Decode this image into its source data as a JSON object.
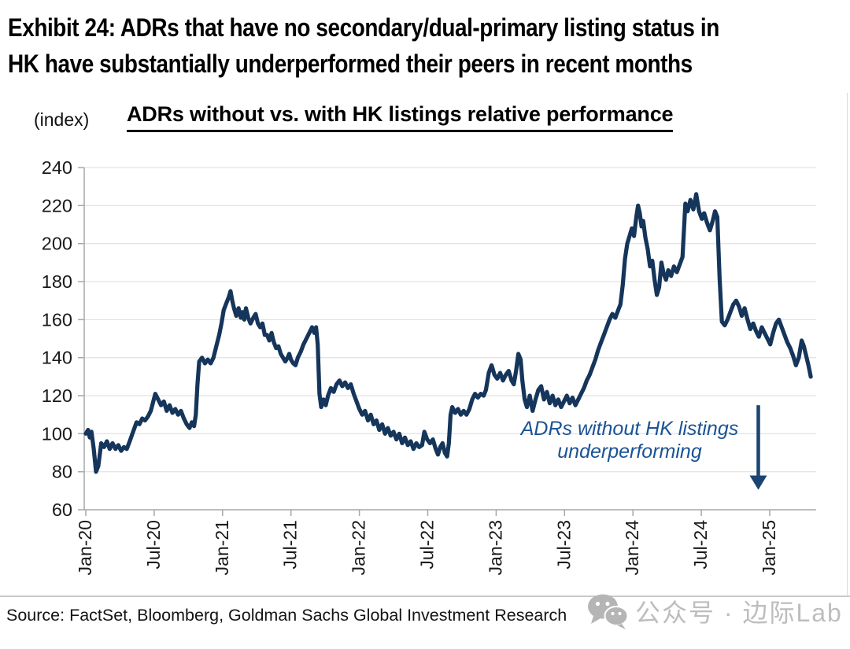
{
  "exhibit": {
    "title_line1": "Exhibit 24: ADRs that have no secondary/dual-primary listing status in",
    "title_line2": "HK have substantially underperformed their peers in recent months"
  },
  "chart": {
    "units_label": "(index)",
    "title": "ADRs without vs. with HK listings relative performance",
    "annotation": {
      "line1": "ADRs without HK listings",
      "line2": "underperforming"
    },
    "source": "Source: FactSet, Bloomberg, Goldman Sachs Global Investment Research"
  },
  "watermark": {
    "icon": "wechat-icon",
    "text": "公众号 · 边际Lab"
  },
  "chart_data": {
    "type": "line",
    "title": "ADRs without vs. with HK listings relative performance",
    "ylabel": "(index)",
    "ylim": [
      60,
      240
    ],
    "ytick_step": 20,
    "yticks": [
      60,
      80,
      100,
      120,
      140,
      160,
      180,
      200,
      220,
      240
    ],
    "x_unit": "months since Jan-2020",
    "xtick_labels": [
      "Jan-20",
      "Jul-20",
      "Jan-21",
      "Jul-21",
      "Jan-22",
      "Jul-22",
      "Jan-23",
      "Jul-23",
      "Jan-24",
      "Jul-24",
      "Jan-25"
    ],
    "xtick_positions": [
      0,
      6,
      12,
      18,
      24,
      30,
      36,
      42,
      48,
      54,
      60
    ],
    "grid": "horizontal",
    "line_color": "#15355b",
    "grid_color": "#dcdcdc",
    "axis_color": "#a8a8a8",
    "tick_label_color": "#1a1a1a",
    "annotation": {
      "text": "ADRs without HK listings underperforming",
      "color": "#1b5394",
      "arrow": {
        "direction": "down",
        "t": 59,
        "value_from": 115,
        "value_base": 78,
        "value_tip": 70.5,
        "color": "#1b4470"
      }
    },
    "series": [
      {
        "name": "ADRs without vs. with HK listings relative performance",
        "points": [
          [
            0,
            100
          ],
          [
            0.2,
            102
          ],
          [
            0.35,
            98
          ],
          [
            0.5,
            101
          ],
          [
            0.7,
            92
          ],
          [
            0.9,
            80
          ],
          [
            1.1,
            83
          ],
          [
            1.35,
            95
          ],
          [
            1.6,
            93
          ],
          [
            1.85,
            96
          ],
          [
            2.1,
            92
          ],
          [
            2.35,
            95
          ],
          [
            2.6,
            92
          ],
          [
            2.85,
            94
          ],
          [
            3.1,
            91
          ],
          [
            3.35,
            93
          ],
          [
            3.6,
            92
          ],
          [
            3.85,
            96
          ],
          [
            4.15,
            101
          ],
          [
            4.45,
            106
          ],
          [
            4.7,
            105
          ],
          [
            4.95,
            108
          ],
          [
            5.2,
            107
          ],
          [
            5.45,
            109
          ],
          [
            5.7,
            112
          ],
          [
            6.1,
            121
          ],
          [
            6.35,
            118
          ],
          [
            6.6,
            115
          ],
          [
            6.85,
            117
          ],
          [
            7.1,
            112
          ],
          [
            7.35,
            115
          ],
          [
            7.6,
            111
          ],
          [
            7.85,
            113
          ],
          [
            8.1,
            110
          ],
          [
            8.35,
            112
          ],
          [
            8.6,
            108
          ],
          [
            8.85,
            105
          ],
          [
            9.1,
            103
          ],
          [
            9.3,
            106
          ],
          [
            9.5,
            104
          ],
          [
            9.65,
            110
          ],
          [
            9.8,
            126
          ],
          [
            9.95,
            138
          ],
          [
            10.2,
            140
          ],
          [
            10.45,
            137
          ],
          [
            10.7,
            139
          ],
          [
            10.95,
            137
          ],
          [
            11.2,
            140
          ],
          [
            11.45,
            146
          ],
          [
            11.7,
            152
          ],
          [
            11.9,
            158
          ],
          [
            12.1,
            165
          ],
          [
            12.35,
            169
          ],
          [
            12.55,
            172
          ],
          [
            12.7,
            175
          ],
          [
            12.85,
            170
          ],
          [
            13.0,
            166
          ],
          [
            13.2,
            162
          ],
          [
            13.4,
            166
          ],
          [
            13.6,
            161
          ],
          [
            13.75,
            164
          ],
          [
            13.9,
            160
          ],
          [
            14.05,
            166
          ],
          [
            14.25,
            161
          ],
          [
            14.45,
            158
          ],
          [
            14.7,
            161
          ],
          [
            14.9,
            163
          ],
          [
            15.1,
            158
          ],
          [
            15.3,
            156
          ],
          [
            15.5,
            158
          ],
          [
            15.7,
            152
          ],
          [
            15.9,
            152
          ],
          [
            16.1,
            149
          ],
          [
            16.3,
            153
          ],
          [
            16.5,
            148
          ],
          [
            16.7,
            145
          ],
          [
            16.9,
            146
          ],
          [
            17.1,
            142
          ],
          [
            17.3,
            140
          ],
          [
            17.5,
            138
          ],
          [
            17.7,
            140
          ],
          [
            17.85,
            142
          ],
          [
            18.0,
            139
          ],
          [
            18.2,
            137
          ],
          [
            18.4,
            136
          ],
          [
            18.6,
            140
          ],
          [
            18.85,
            143
          ],
          [
            19.1,
            147
          ],
          [
            19.35,
            150
          ],
          [
            19.6,
            153
          ],
          [
            19.85,
            156
          ],
          [
            20.05,
            153
          ],
          [
            20.2,
            156
          ],
          [
            20.35,
            147
          ],
          [
            20.5,
            121
          ],
          [
            20.65,
            114
          ],
          [
            20.85,
            118
          ],
          [
            21.05,
            115
          ],
          [
            21.25,
            120
          ],
          [
            21.5,
            124
          ],
          [
            21.75,
            122
          ],
          [
            22.0,
            126
          ],
          [
            22.25,
            128
          ],
          [
            22.5,
            125
          ],
          [
            22.75,
            127
          ],
          [
            23.0,
            124
          ],
          [
            23.25,
            126
          ],
          [
            23.5,
            121
          ],
          [
            23.75,
            117
          ],
          [
            24.0,
            113
          ],
          [
            24.25,
            110
          ],
          [
            24.5,
            112
          ],
          [
            24.75,
            107
          ],
          [
            25.0,
            110
          ],
          [
            25.25,
            105
          ],
          [
            25.5,
            107
          ],
          [
            25.75,
            102
          ],
          [
            26.0,
            105
          ],
          [
            26.25,
            100
          ],
          [
            26.5,
            103
          ],
          [
            26.75,
            99
          ],
          [
            27.0,
            101
          ],
          [
            27.25,
            97
          ],
          [
            27.5,
            100
          ],
          [
            27.75,
            95
          ],
          [
            28.0,
            98
          ],
          [
            28.25,
            94
          ],
          [
            28.5,
            96
          ],
          [
            28.75,
            92
          ],
          [
            29.0,
            95
          ],
          [
            29.25,
            93
          ],
          [
            29.5,
            94
          ],
          [
            29.7,
            101
          ],
          [
            29.95,
            97
          ],
          [
            30.2,
            95
          ],
          [
            30.45,
            97
          ],
          [
            30.7,
            92
          ],
          [
            30.9,
            89
          ],
          [
            31.1,
            93
          ],
          [
            31.3,
            95
          ],
          [
            31.5,
            90
          ],
          [
            31.7,
            88
          ],
          [
            31.85,
            95
          ],
          [
            32.0,
            110
          ],
          [
            32.15,
            114
          ],
          [
            32.4,
            111
          ],
          [
            32.65,
            113
          ],
          [
            32.9,
            110
          ],
          [
            33.15,
            112
          ],
          [
            33.4,
            110
          ],
          [
            33.65,
            113
          ],
          [
            33.9,
            118
          ],
          [
            34.15,
            121
          ],
          [
            34.4,
            119
          ],
          [
            34.65,
            121
          ],
          [
            34.9,
            120
          ],
          [
            35.1,
            123
          ],
          [
            35.35,
            132
          ],
          [
            35.6,
            136
          ],
          [
            35.85,
            131
          ],
          [
            36.1,
            129
          ],
          [
            36.35,
            132
          ],
          [
            36.6,
            128
          ],
          [
            36.85,
            131
          ],
          [
            37.1,
            133
          ],
          [
            37.35,
            128
          ],
          [
            37.55,
            126
          ],
          [
            37.75,
            133
          ],
          [
            37.95,
            142
          ],
          [
            38.15,
            139
          ],
          [
            38.3,
            128
          ],
          [
            38.5,
            118
          ],
          [
            38.7,
            114
          ],
          [
            38.95,
            120
          ],
          [
            39.2,
            112
          ],
          [
            39.45,
            118
          ],
          [
            39.7,
            123
          ],
          [
            39.95,
            125
          ],
          [
            40.2,
            118
          ],
          [
            40.45,
            122
          ],
          [
            40.7,
            116
          ],
          [
            40.95,
            120
          ],
          [
            41.2,
            115
          ],
          [
            41.45,
            118
          ],
          [
            41.7,
            114
          ],
          [
            41.95,
            117
          ],
          [
            42.2,
            120
          ],
          [
            42.45,
            116
          ],
          [
            42.7,
            119
          ],
          [
            42.95,
            115
          ],
          [
            43.2,
            118
          ],
          [
            43.45,
            121
          ],
          [
            43.7,
            124
          ],
          [
            43.95,
            128
          ],
          [
            44.2,
            131
          ],
          [
            44.45,
            135
          ],
          [
            44.7,
            139
          ],
          [
            44.95,
            144
          ],
          [
            45.2,
            148
          ],
          [
            45.45,
            152
          ],
          [
            45.7,
            156
          ],
          [
            45.95,
            160
          ],
          [
            46.2,
            163
          ],
          [
            46.45,
            161
          ],
          [
            46.7,
            165
          ],
          [
            46.9,
            168
          ],
          [
            47.1,
            178
          ],
          [
            47.3,
            192
          ],
          [
            47.5,
            200
          ],
          [
            47.7,
            204
          ],
          [
            47.9,
            208
          ],
          [
            48.1,
            204
          ],
          [
            48.3,
            214
          ],
          [
            48.45,
            220
          ],
          [
            48.6,
            216
          ],
          [
            48.75,
            209
          ],
          [
            48.9,
            212
          ],
          [
            49.1,
            203
          ],
          [
            49.3,
            197
          ],
          [
            49.5,
            188
          ],
          [
            49.7,
            191
          ],
          [
            49.9,
            181
          ],
          [
            50.1,
            173
          ],
          [
            50.3,
            177
          ],
          [
            50.5,
            190
          ],
          [
            50.7,
            184
          ],
          [
            50.9,
            181
          ],
          [
            51.1,
            186
          ],
          [
            51.35,
            183
          ],
          [
            51.6,
            188
          ],
          [
            51.85,
            185
          ],
          [
            52.1,
            189
          ],
          [
            52.35,
            193
          ],
          [
            52.6,
            221
          ],
          [
            52.8,
            217
          ],
          [
            53.05,
            223
          ],
          [
            53.3,
            218
          ],
          [
            53.55,
            226
          ],
          [
            53.8,
            217
          ],
          [
            54.05,
            213
          ],
          [
            54.25,
            216
          ],
          [
            54.5,
            211
          ],
          [
            54.75,
            207
          ],
          [
            55.0,
            212
          ],
          [
            55.2,
            217
          ],
          [
            55.4,
            214
          ],
          [
            55.6,
            182
          ],
          [
            55.8,
            159
          ],
          [
            56.05,
            157
          ],
          [
            56.3,
            160
          ],
          [
            56.55,
            164
          ],
          [
            56.8,
            168
          ],
          [
            57.05,
            170
          ],
          [
            57.3,
            167
          ],
          [
            57.55,
            162
          ],
          [
            57.8,
            166
          ],
          [
            58.05,
            160
          ],
          [
            58.3,
            155
          ],
          [
            58.55,
            158
          ],
          [
            58.8,
            154
          ],
          [
            59.05,
            151
          ],
          [
            59.3,
            156
          ],
          [
            59.55,
            153
          ],
          [
            59.8,
            150
          ],
          [
            60.05,
            147
          ],
          [
            60.3,
            153
          ],
          [
            60.55,
            158
          ],
          [
            60.8,
            160
          ],
          [
            61.05,
            156
          ],
          [
            61.3,
            152
          ],
          [
            61.55,
            148
          ],
          [
            61.8,
            145
          ],
          [
            62.05,
            141
          ],
          [
            62.3,
            136
          ],
          [
            62.55,
            140
          ],
          [
            62.8,
            149
          ],
          [
            63.0,
            146
          ],
          [
            63.2,
            141
          ],
          [
            63.4,
            136
          ],
          [
            63.6,
            130
          ]
        ]
      }
    ]
  }
}
